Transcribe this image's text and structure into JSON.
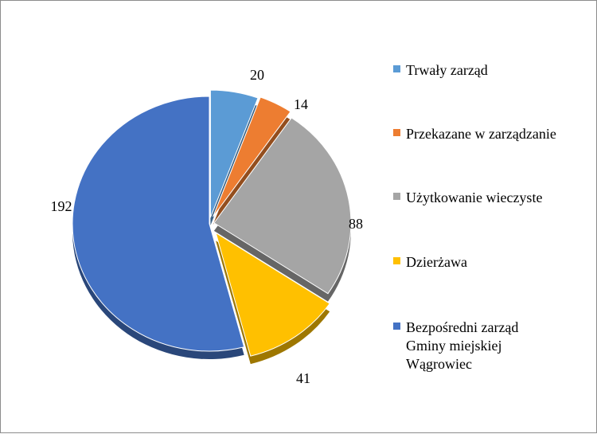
{
  "chart_data": {
    "type": "pie",
    "title": "",
    "legend_position": "right",
    "categories": [
      "Trwały zarząd",
      "Przekazane w zarządzanie",
      "Użytkowanie wieczyste",
      "Dzierżawa",
      "Bezpośredni zarząd Gminy miejskiej Wągrowiec"
    ],
    "values": [
      20,
      14,
      88,
      41,
      192
    ],
    "colors": [
      "#5B9BD5",
      "#ED7D31",
      "#A5A5A5",
      "#FFC000",
      "#4472C4"
    ],
    "data_labels": [
      "20",
      "14",
      "88",
      "41",
      "192"
    ],
    "exploded": true,
    "style": "3d-tilted"
  }
}
